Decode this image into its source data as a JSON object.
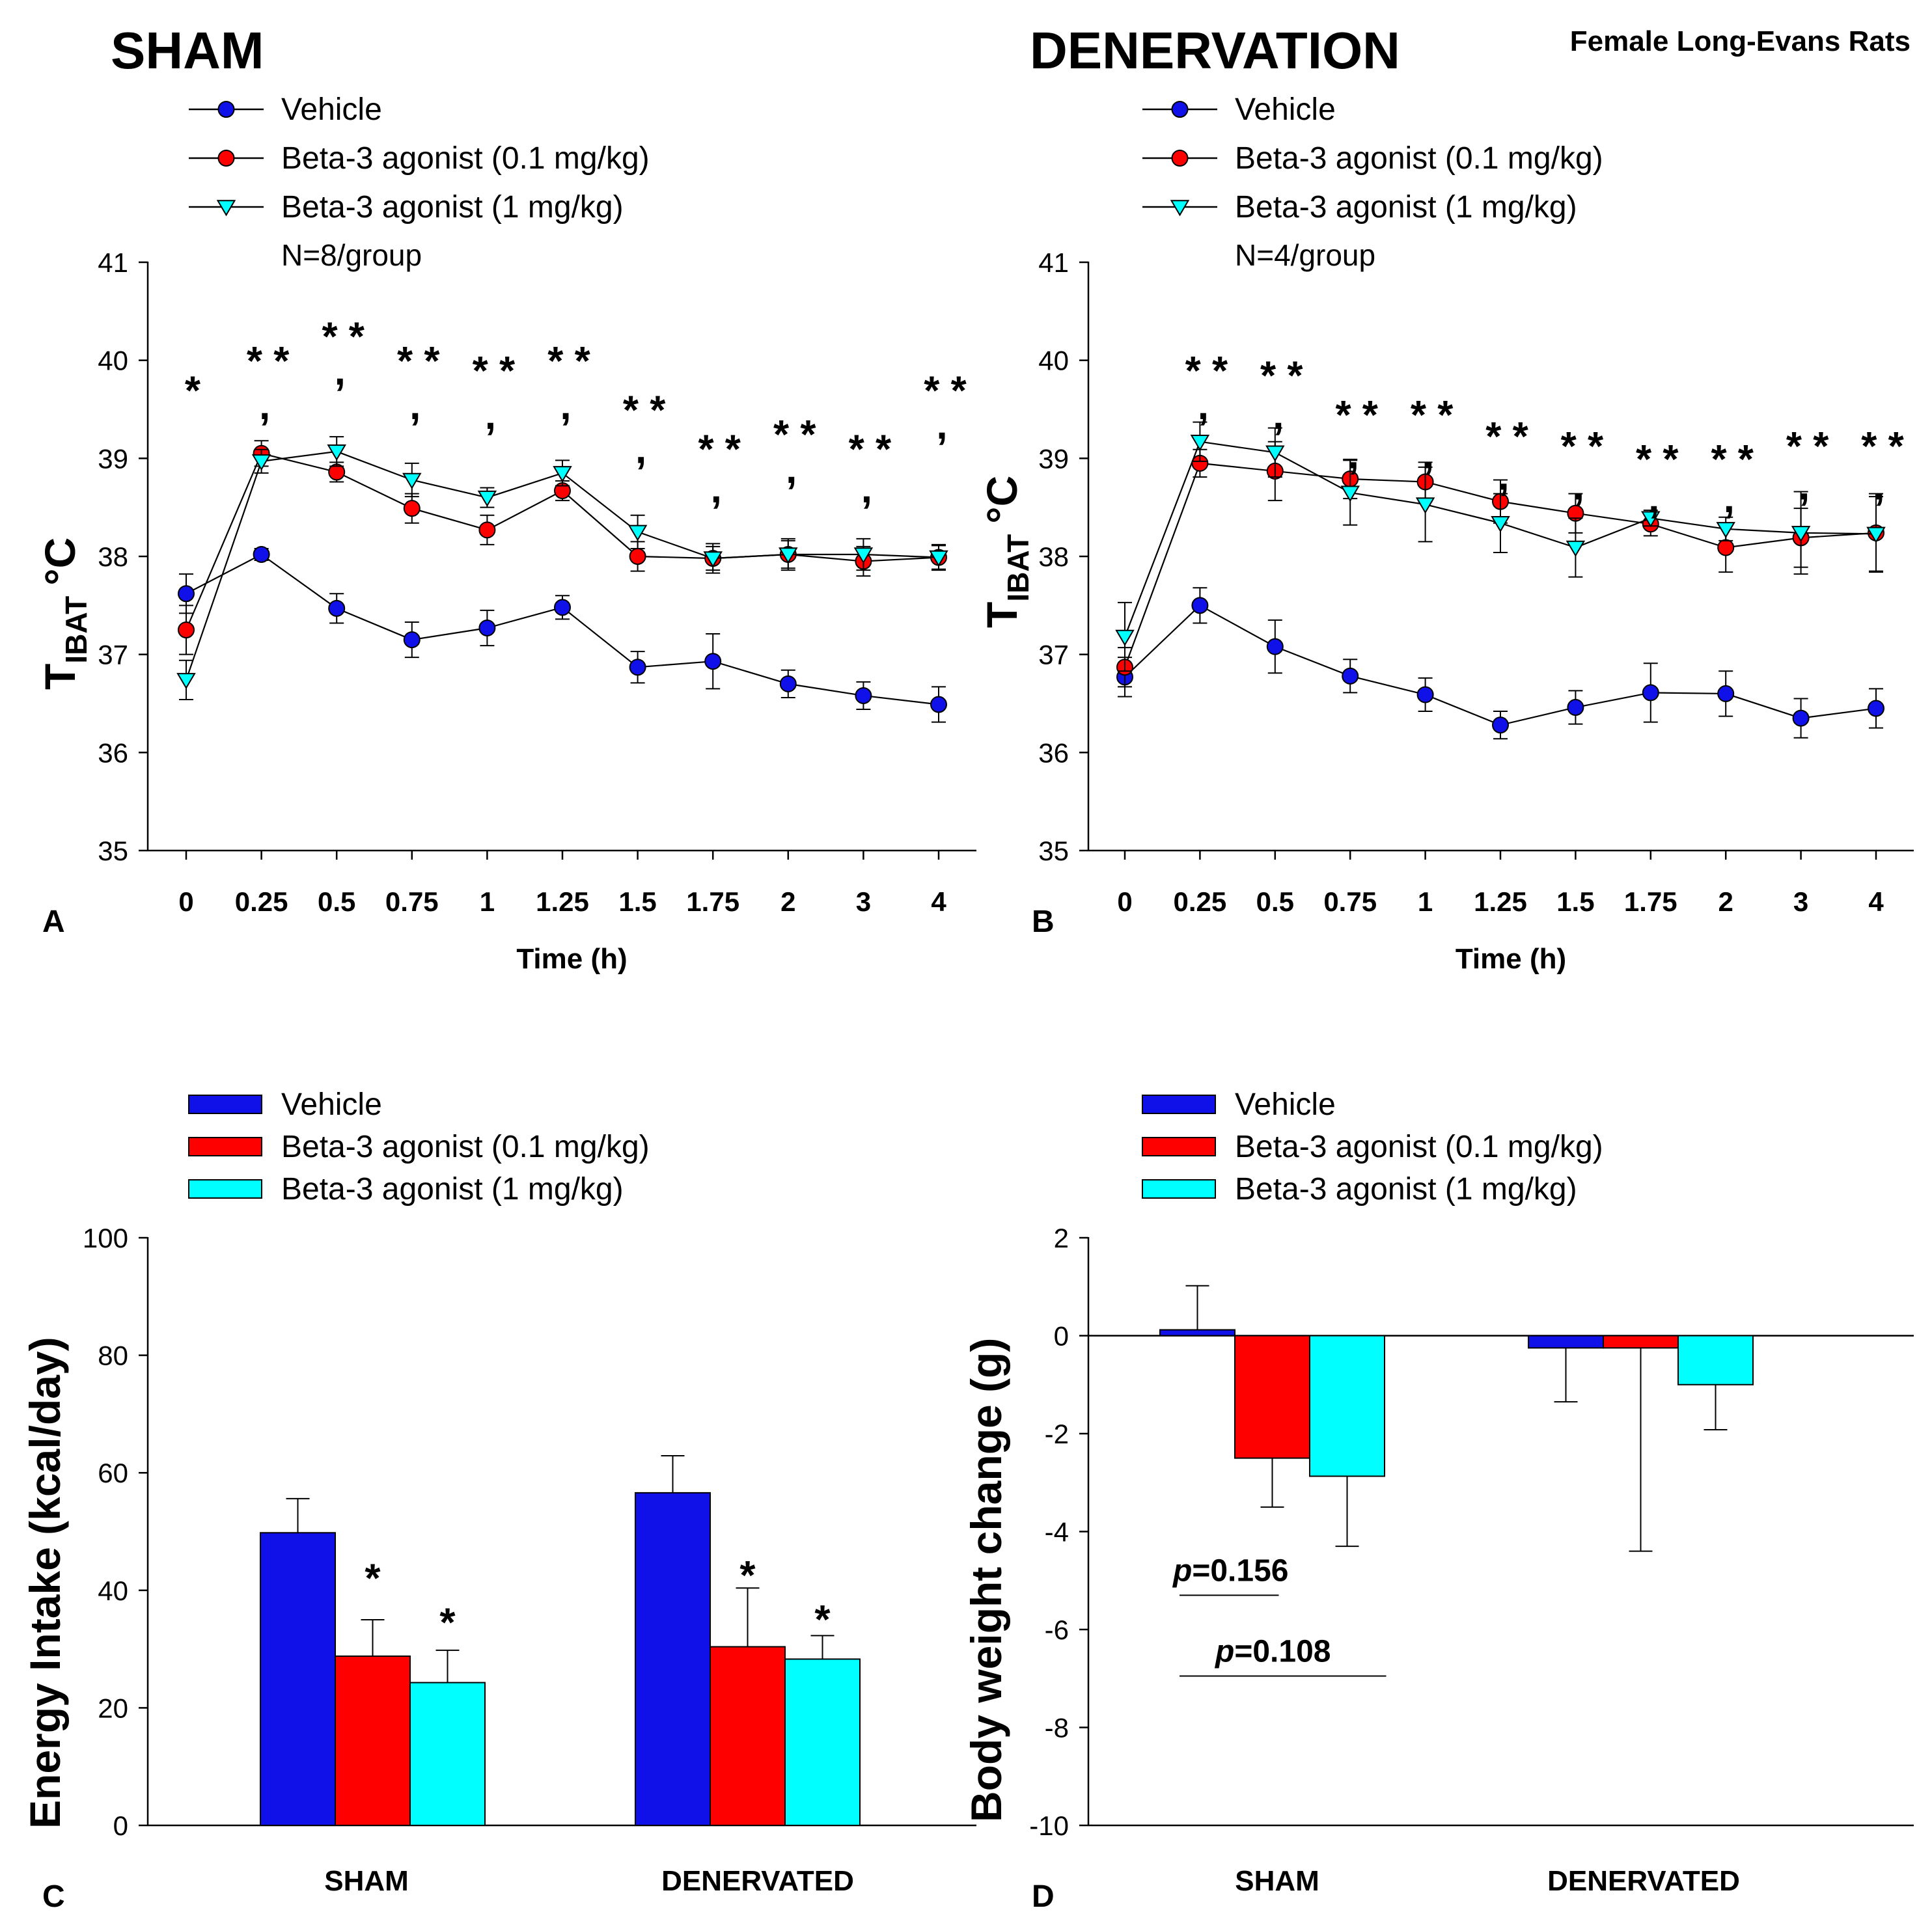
{
  "figure_title": "Female Long-Evans Rats",
  "colors": {
    "vehicle": "#1010e8",
    "low": "#ff0000",
    "high": "#00ffff"
  },
  "legend": [
    "Vehicle",
    "Beta-3 agonist (0.1 mg/kg)",
    "Beta-3 agonist (1 mg/kg)"
  ],
  "chart_data": [
    {
      "panel": "A",
      "type": "line",
      "title": "SHAM",
      "n_label": "N=8/group",
      "xlabel": "Time (h)",
      "ylabel_main": "T",
      "ylabel_sub": "IBAT",
      "ylabel_unit": "°C",
      "ylim": [
        35,
        41
      ],
      "yticks": [
        35,
        36,
        37,
        38,
        39,
        40,
        41
      ],
      "categories": [
        "0",
        "0.25",
        "0.5",
        "0.75",
        "1",
        "1.25",
        "1.5",
        "1.75",
        "2",
        "3",
        "4"
      ],
      "series": [
        {
          "name": "Vehicle",
          "values": [
            37.62,
            38.02,
            37.47,
            37.15,
            37.27,
            37.48,
            36.87,
            36.93,
            36.7,
            36.58,
            36.49
          ],
          "err": [
            0.2,
            0.06,
            0.15,
            0.18,
            0.18,
            0.12,
            0.16,
            0.28,
            0.14,
            0.14,
            0.18
          ]
        },
        {
          "name": "Beta-3 agonist (0.1 mg/kg)",
          "values": [
            37.25,
            39.05,
            38.86,
            38.49,
            38.27,
            38.67,
            38.0,
            37.98,
            38.02,
            37.95,
            37.99
          ],
          "err": [
            0.25,
            0.13,
            0.1,
            0.15,
            0.15,
            0.1,
            0.15,
            0.12,
            0.14,
            0.15,
            0.12
          ]
        },
        {
          "name": "Beta-3 agonist (1 mg/kg)",
          "values": [
            36.74,
            38.97,
            39.07,
            38.78,
            38.6,
            38.85,
            38.25,
            37.98,
            38.02,
            38.02,
            37.99
          ],
          "err": [
            0.2,
            0.12,
            0.15,
            0.17,
            0.1,
            0.13,
            0.17,
            0.15,
            0.16,
            0.16,
            0.13
          ]
        }
      ],
      "annotations": [
        {
          "text": "*",
          "x": "0",
          "y": 39.75
        },
        {
          "text": "* *",
          "x": "0.25",
          "y": 40.05
        },
        {
          "text": ",",
          "x": "0.25",
          "y": 39.6
        },
        {
          "text": "* *",
          "x": "0.5",
          "y": 40.3
        },
        {
          "text": ",",
          "x": "0.5",
          "y": 39.95
        },
        {
          "text": "* *",
          "x": "0.75",
          "y": 40.05
        },
        {
          "text": ",",
          "x": "0.75",
          "y": 39.6
        },
        {
          "text": "* *",
          "x": "1",
          "y": 39.95
        },
        {
          "text": ",",
          "x": "1",
          "y": 39.5
        },
        {
          "text": "* *",
          "x": "1.25",
          "y": 40.05
        },
        {
          "text": ",",
          "x": "1.25",
          "y": 39.6
        },
        {
          "text": "* *",
          "x": "1.5",
          "y": 39.55
        },
        {
          "text": ",",
          "x": "1.5",
          "y": 39.15
        },
        {
          "text": "* *",
          "x": "1.75",
          "y": 39.15
        },
        {
          "text": ",",
          "x": "1.75",
          "y": 38.75
        },
        {
          "text": "* *",
          "x": "2",
          "y": 39.3
        },
        {
          "text": ",",
          "x": "2",
          "y": 38.95
        },
        {
          "text": "* *",
          "x": "3",
          "y": 39.15
        },
        {
          "text": ",",
          "x": "3",
          "y": 38.75
        },
        {
          "text": "* *",
          "x": "4",
          "y": 39.75
        },
        {
          "text": ",",
          "x": "4",
          "y": 39.4
        }
      ]
    },
    {
      "panel": "B",
      "type": "line",
      "title": "DENERVATION",
      "n_label": "N=4/group",
      "xlabel": "Time (h)",
      "ylabel_main": "T",
      "ylabel_sub": "IBAT",
      "ylabel_unit": "°C",
      "ylim": [
        35,
        41
      ],
      "yticks": [
        35,
        36,
        37,
        38,
        39,
        40,
        41
      ],
      "categories": [
        "0",
        "0.25",
        "0.5",
        "0.75",
        "1",
        "1.25",
        "1.5",
        "1.75",
        "2",
        "3",
        "4"
      ],
      "series": [
        {
          "name": "Vehicle",
          "values": [
            36.77,
            37.5,
            37.08,
            36.78,
            36.59,
            36.28,
            36.46,
            36.61,
            36.6,
            36.35,
            36.45
          ],
          "err": [
            0.2,
            0.18,
            0.27,
            0.17,
            0.17,
            0.14,
            0.17,
            0.3,
            0.23,
            0.2,
            0.2
          ]
        },
        {
          "name": "Beta-3 agonist (0.1 mg/kg)",
          "values": [
            36.87,
            38.95,
            38.87,
            38.79,
            38.76,
            38.56,
            38.44,
            38.33,
            38.09,
            38.19,
            38.24
          ],
          "err": [
            0.2,
            0.14,
            0.3,
            0.2,
            0.2,
            0.22,
            0.2,
            0.12,
            0.25,
            0.3,
            0.4
          ]
        },
        {
          "name": "Beta-3 agonist (1 mg/kg)",
          "values": [
            37.18,
            39.17,
            39.06,
            38.65,
            38.53,
            38.34,
            38.09,
            38.39,
            38.28,
            38.24,
            38.23
          ],
          "err": [
            0.35,
            0.2,
            0.25,
            0.33,
            0.38,
            0.3,
            0.3,
            0.08,
            0.12,
            0.42,
            0.38
          ]
        }
      ],
      "annotations": [
        {
          "text": "* *",
          "x": "0.25",
          "y": 39.95
        },
        {
          "text": ",",
          "x": "0.25",
          "y": 39.6
        },
        {
          "text": "* *",
          "x": "0.5",
          "y": 39.9
        },
        {
          "text": ",",
          "x": "0.5",
          "y": 39.5
        },
        {
          "text": "* *",
          "x": "0.75",
          "y": 39.5
        },
        {
          "text": ",",
          "x": "0.75",
          "y": 39.1
        },
        {
          "text": "* *",
          "x": "1",
          "y": 39.5
        },
        {
          "text": ",",
          "x": "1",
          "y": 39.1
        },
        {
          "text": "* *",
          "x": "1.25",
          "y": 39.28
        },
        {
          "text": ",",
          "x": "1.25",
          "y": 38.88
        },
        {
          "text": "* *",
          "x": "1.5",
          "y": 39.18
        },
        {
          "text": ",",
          "x": "1.5",
          "y": 38.78
        },
        {
          "text": "* *",
          "x": "1.75",
          "y": 39.05
        },
        {
          "text": ",",
          "x": "1.75",
          "y": 38.65
        },
        {
          "text": "* *",
          "x": "2",
          "y": 39.05
        },
        {
          "text": ",",
          "x": "2",
          "y": 38.65
        },
        {
          "text": "* *",
          "x": "3",
          "y": 39.18
        },
        {
          "text": ",",
          "x": "3",
          "y": 38.78
        },
        {
          "text": "* *",
          "x": "4",
          "y": 39.18
        },
        {
          "text": ",",
          "x": "4",
          "y": 38.78
        }
      ]
    },
    {
      "panel": "C",
      "type": "bar",
      "ylabel": "Energy Intake (kcal/day)",
      "ylim": [
        0,
        100
      ],
      "yticks": [
        0,
        20,
        40,
        60,
        80,
        100
      ],
      "categories": [
        "SHAM",
        "DENERVATED"
      ],
      "series": [
        {
          "name": "Vehicle",
          "values": [
            49.8,
            56.6
          ],
          "err": [
            5.8,
            6.3
          ]
        },
        {
          "name": "Beta-3 agonist (0.1 mg/kg)",
          "values": [
            28.8,
            30.4
          ],
          "err": [
            6.2,
            10.0
          ]
        },
        {
          "name": "Beta-3 agonist (1 mg/kg)",
          "values": [
            24.3,
            28.3
          ],
          "err": [
            5.5,
            4.0
          ]
        }
      ],
      "annotations": [
        {
          "text": "*",
          "group": 0,
          "series": 1,
          "y": 43
        },
        {
          "text": "*",
          "group": 0,
          "series": 2,
          "y": 35.5
        },
        {
          "text": "*",
          "group": 1,
          "series": 1,
          "y": 43.5
        },
        {
          "text": "*",
          "group": 1,
          "series": 2,
          "y": 36
        }
      ]
    },
    {
      "panel": "D",
      "type": "bar",
      "ylabel": "Body weight change (g)",
      "ylim": [
        -10,
        2
      ],
      "yticks": [
        -10,
        -8,
        -6,
        -4,
        -2,
        0,
        2
      ],
      "categories": [
        "SHAM",
        "DENERVATED"
      ],
      "series": [
        {
          "name": "Vehicle",
          "values": [
            0.12,
            -0.25
          ],
          "err": [
            0.9,
            1.1
          ]
        },
        {
          "name": "Beta-3 agonist (0.1 mg/kg)",
          "values": [
            -2.5,
            -0.25
          ],
          "err": [
            1.0,
            4.15
          ]
        },
        {
          "name": "Beta-3 agonist (1 mg/kg)",
          "values": [
            -2.87,
            -1.0
          ],
          "err": [
            1.43,
            0.92
          ]
        }
      ],
      "comparisons": [
        {
          "p_label": "p",
          "p_value": "=0.156",
          "group": 0,
          "from": 0,
          "to": 1,
          "y": -5.3
        },
        {
          "p_label": "p",
          "p_value": "=0.108",
          "group": 0,
          "from": 0,
          "to": 2,
          "y": -6.95
        }
      ]
    }
  ]
}
